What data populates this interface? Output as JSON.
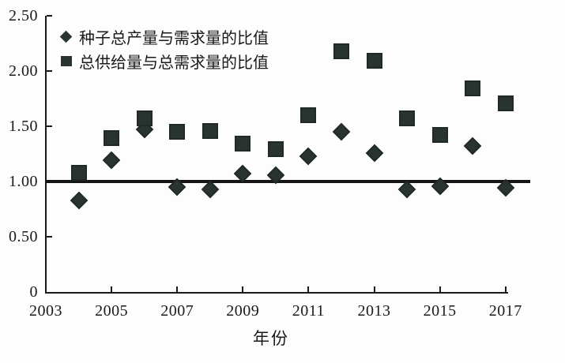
{
  "chart_data": {
    "type": "scatter",
    "x": [
      2004,
      2005,
      2006,
      2007,
      2008,
      2009,
      2010,
      2011,
      2012,
      2013,
      2014,
      2015,
      2016,
      2017
    ],
    "series": [
      {
        "name": "种子总产量与需求量的比值",
        "marker": "diamond",
        "values": [
          0.83,
          1.19,
          1.47,
          0.95,
          0.93,
          1.07,
          1.06,
          1.23,
          1.45,
          1.26,
          0.93,
          0.96,
          1.32,
          0.94
        ]
      },
      {
        "name": "总供给量与总需求量的比值",
        "marker": "square",
        "values": [
          1.08,
          1.39,
          1.57,
          1.45,
          1.46,
          1.34,
          1.29,
          1.6,
          2.18,
          2.09,
          1.57,
          1.42,
          1.84,
          1.71
        ]
      }
    ],
    "title": "",
    "xlabel": "年份",
    "ylabel": "",
    "xlim": [
      2003,
      2018
    ],
    "ylim": [
      0,
      2.5
    ],
    "xticks": [
      {
        "value": 2003,
        "label": "2003"
      },
      {
        "value": 2005,
        "label": "2005"
      },
      {
        "value": 2007,
        "label": "2007"
      },
      {
        "value": 2009,
        "label": "2009"
      },
      {
        "value": 2011,
        "label": "2011"
      },
      {
        "value": 2013,
        "label": "2013"
      },
      {
        "value": 2015,
        "label": "2015"
      },
      {
        "value": 2017,
        "label": "2017"
      }
    ],
    "yticks": [
      {
        "value": 0,
        "label": "0"
      },
      {
        "value": 0.5,
        "label": "0.50"
      },
      {
        "value": 1.0,
        "label": "1.00"
      },
      {
        "value": 1.5,
        "label": "1.50"
      },
      {
        "value": 2.0,
        "label": "2.00"
      },
      {
        "value": 2.5,
        "label": "2.50"
      }
    ],
    "reference_line": 1.0,
    "grid": false,
    "legend_position": "top-left",
    "marker_color": "#293330",
    "axis_color": "#1a1a1a"
  }
}
